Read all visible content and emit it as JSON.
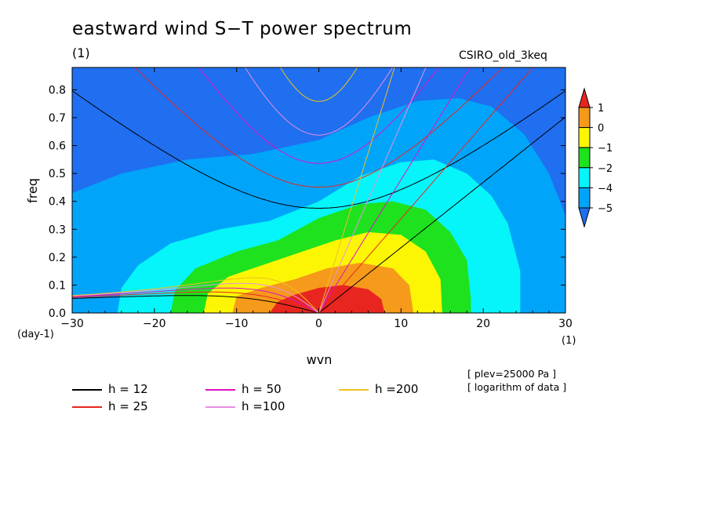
{
  "header": {
    "title": "eastward wind S−T power spectrum",
    "subtitle": "(1)",
    "model": "CSIRO_old_3keq"
  },
  "notes": [
    "[ plev=25000 Pa ]",
    "[ logarithm of data ]"
  ],
  "chart_data": {
    "type": "heatmap",
    "title": "eastward wind S−T power spectrum",
    "xlabel": "wvn",
    "ylabel": "freq",
    "x_unit": "(1)",
    "y_unit": "(day-1)",
    "xlim": [
      -30,
      30
    ],
    "ylim": [
      0.0,
      0.88
    ],
    "x_ticks": [
      "−30",
      "−20",
      "−10",
      "0",
      "10",
      "20",
      "30"
    ],
    "y_ticks": [
      "0.0",
      "0.1",
      "0.2",
      "0.3",
      "0.4",
      "0.5",
      "0.6",
      "0.7",
      "0.8"
    ],
    "colorbar": {
      "levels": [
        "1",
        "0",
        "−1",
        "−2",
        "−4",
        "−5"
      ],
      "colors": [
        "#e8261f",
        "#f59a1a",
        "#fcf605",
        "#1ee21e",
        "#05f5fa",
        "#00a5fa",
        "#1f6ff0"
      ]
    },
    "contour_fill_regions": [
      {
        "level": "< −5",
        "color": "#1f6ff0"
      },
      {
        "level": "−5 to −4",
        "color": "#00a5fa",
        "x_extent": [
          -30,
          30
        ],
        "max_freq": 0.77
      },
      {
        "level": "−4 to −2",
        "color": "#05f5fa",
        "x_extent": [
          -24.5,
          24.5
        ],
        "max_freq": 0.55
      },
      {
        "level": "−2 to −1",
        "color": "#1ee21e",
        "x_extent": [
          -18,
          18.5
        ],
        "max_freq": 0.4
      },
      {
        "level": "−1 to 0",
        "color": "#fcf605",
        "x_extent": [
          -14,
          15
        ],
        "max_freq": 0.29
      },
      {
        "level": "0 to 1",
        "color": "#f59a1a",
        "x_extent": [
          -10.5,
          11.5
        ],
        "max_freq": 0.18
      },
      {
        "level": "> 1",
        "color": "#e8261f",
        "x_extent": [
          -6,
          8
        ],
        "max_freq": 0.1
      }
    ],
    "series": [
      {
        "name": "h = 12",
        "color": "#000000",
        "h": 12
      },
      {
        "name": "h = 25",
        "color": "#e8261f",
        "h": 25
      },
      {
        "name": "h = 50",
        "color": "#e010c8",
        "h": 50
      },
      {
        "name": "h =100",
        "color": "#e890e0",
        "h": 100
      },
      {
        "name": "h =200",
        "color": "#f0c020",
        "h": 200
      }
    ]
  }
}
